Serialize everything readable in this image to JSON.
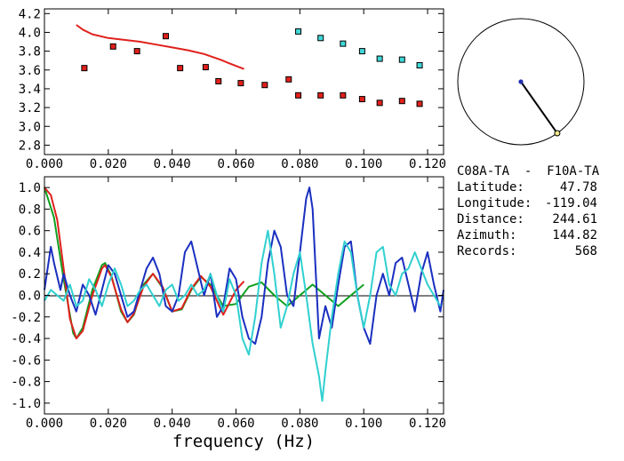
{
  "station_pair": "C08A-TA  -  F10A-TA",
  "info": [
    {
      "label": "Latitude:",
      "value": "47.78"
    },
    {
      "label": "Longitude:",
      "value": "-119.04"
    },
    {
      "label": "Distance:",
      "value": "244.61"
    },
    {
      "label": "Azimuth:",
      "value": "144.82"
    },
    {
      "label": "Records:",
      "value": "568"
    }
  ],
  "chart_data": [
    {
      "type": "scatter",
      "xlim": [
        0.0,
        0.125
      ],
      "ylim": [
        2.7,
        4.25
      ],
      "x_ticks": [
        "0.000",
        "0.020",
        "0.040",
        "0.060",
        "0.080",
        "0.100",
        "0.120"
      ],
      "y_ticks": [
        "2.8",
        "3.0",
        "3.2",
        "3.4",
        "3.6",
        "3.8",
        "4.0",
        "4.2"
      ],
      "grid": false,
      "series": [
        {
          "color": "#e0201c",
          "marker": "square",
          "x": [
            0.0125,
            0.0215,
            0.029,
            0.038,
            0.0425,
            0.0505,
            0.0545,
            0.0615,
            0.069,
            0.0765,
            0.0795,
            0.0865,
            0.0935,
            0.0995,
            0.105,
            0.112,
            0.1175
          ],
          "y": [
            3.62,
            3.85,
            3.8,
            3.96,
            3.62,
            3.63,
            3.48,
            3.46,
            3.44,
            3.5,
            3.33,
            3.33,
            3.33,
            3.29,
            3.25,
            3.27,
            3.24
          ]
        },
        {
          "color": "#40d8d8",
          "marker": "square",
          "x": [
            0.0795,
            0.0865,
            0.0935,
            0.0995,
            0.105,
            0.112,
            0.1175
          ],
          "y": [
            4.01,
            3.94,
            3.88,
            3.8,
            3.72,
            3.71,
            3.65
          ]
        },
        {
          "color": "#e0201c",
          "marker": "line",
          "x": [
            0.01,
            0.012,
            0.015,
            0.02,
            0.025,
            0.03,
            0.035,
            0.04,
            0.045,
            0.05,
            0.055,
            0.058,
            0.0625
          ],
          "y": [
            4.08,
            4.03,
            3.98,
            3.94,
            3.92,
            3.9,
            3.87,
            3.84,
            3.81,
            3.77,
            3.71,
            3.67,
            3.61
          ]
        }
      ]
    },
    {
      "type": "line",
      "xlim": [
        0.0,
        0.125
      ],
      "ylim": [
        -1.1,
        1.1
      ],
      "xlabel": "frequency (Hz)",
      "x_ticks": [
        "0.000",
        "0.020",
        "0.040",
        "0.060",
        "0.080",
        "0.100",
        "0.120"
      ],
      "y_ticks": [
        "-1.0",
        "-0.8",
        "-0.6",
        "-0.4",
        "-0.2",
        "0.0",
        "0.2",
        "0.4",
        "0.6",
        "0.8",
        "1.0"
      ],
      "zero_line": true,
      "grid": false,
      "series": [
        {
          "color": "#10a020",
          "x": [
            0.0,
            0.003,
            0.006,
            0.009,
            0.01,
            0.012,
            0.015,
            0.018,
            0.019,
            0.021,
            0.024,
            0.026,
            0.028,
            0.031,
            0.034,
            0.037,
            0.04,
            0.043,
            0.046,
            0.049,
            0.052,
            0.056,
            0.06,
            0.064,
            0.068,
            0.072,
            0.076,
            0.08,
            0.084,
            0.088,
            0.092,
            0.096,
            0.1
          ],
          "y": [
            1.0,
            0.72,
            0.15,
            -0.35,
            -0.4,
            -0.3,
            0.05,
            0.28,
            0.3,
            0.18,
            -0.15,
            -0.25,
            -0.18,
            0.1,
            0.2,
            0.07,
            -0.15,
            -0.13,
            0.05,
            0.17,
            0.1,
            -0.1,
            -0.08,
            0.08,
            0.12,
            0.0,
            -0.1,
            0.0,
            0.1,
            0.0,
            -0.1,
            0.0,
            0.1
          ]
        },
        {
          "color": "#e0201c",
          "x": [
            0.0,
            0.002,
            0.004,
            0.006,
            0.008,
            0.01,
            0.012,
            0.015,
            0.018,
            0.019,
            0.021,
            0.024,
            0.026,
            0.028,
            0.031,
            0.034,
            0.037,
            0.04,
            0.043,
            0.046,
            0.049,
            0.052,
            0.056,
            0.06,
            0.0625
          ],
          "y": [
            1.0,
            0.93,
            0.7,
            0.25,
            -0.22,
            -0.4,
            -0.33,
            0.0,
            0.25,
            0.28,
            0.17,
            -0.13,
            -0.25,
            -0.17,
            0.08,
            0.2,
            0.08,
            -0.15,
            -0.12,
            0.06,
            0.18,
            0.08,
            -0.18,
            0.05,
            0.13
          ]
        },
        {
          "color": "#1a2fc0",
          "x": [
            0.0,
            0.002,
            0.003,
            0.005,
            0.006,
            0.008,
            0.01,
            0.012,
            0.014,
            0.016,
            0.018,
            0.02,
            0.022,
            0.024,
            0.026,
            0.028,
            0.03,
            0.032,
            0.034,
            0.036,
            0.038,
            0.04,
            0.042,
            0.044,
            0.046,
            0.048,
            0.05,
            0.052,
            0.054,
            0.056,
            0.058,
            0.06,
            0.062,
            0.064,
            0.066,
            0.068,
            0.07,
            0.072,
            0.074,
            0.076,
            0.078,
            0.08,
            0.082,
            0.083,
            0.084,
            0.085,
            0.086,
            0.088,
            0.09,
            0.092,
            0.094,
            0.096,
            0.098,
            0.1,
            0.102,
            0.104,
            0.106,
            0.108,
            0.11,
            0.112,
            0.114,
            0.116,
            0.118,
            0.12,
            0.122,
            0.124,
            0.125
          ],
          "y": [
            0.05,
            0.45,
            0.3,
            0.05,
            0.2,
            0.0,
            -0.15,
            0.1,
            0.0,
            -0.18,
            0.05,
            0.28,
            0.2,
            0.0,
            -0.2,
            -0.15,
            0.05,
            0.25,
            0.35,
            0.2,
            -0.1,
            -0.15,
            0.0,
            0.4,
            0.5,
            0.25,
            0.0,
            0.2,
            -0.2,
            -0.1,
            0.25,
            0.15,
            -0.2,
            -0.4,
            -0.45,
            -0.2,
            0.3,
            0.6,
            0.45,
            0.0,
            -0.1,
            0.4,
            0.9,
            1.0,
            0.8,
            0.2,
            -0.4,
            -0.1,
            -0.3,
            0.1,
            0.45,
            0.5,
            0.0,
            -0.3,
            -0.45,
            0.0,
            0.2,
            0.0,
            0.3,
            0.35,
            0.1,
            -0.15,
            0.2,
            0.4,
            0.1,
            -0.15,
            0.05
          ]
        },
        {
          "color": "#30d0d0",
          "x": [
            0.0,
            0.002,
            0.004,
            0.006,
            0.008,
            0.01,
            0.012,
            0.014,
            0.016,
            0.018,
            0.02,
            0.022,
            0.024,
            0.026,
            0.028,
            0.03,
            0.032,
            0.034,
            0.036,
            0.038,
            0.04,
            0.042,
            0.044,
            0.046,
            0.048,
            0.05,
            0.052,
            0.054,
            0.056,
            0.058,
            0.06,
            0.062,
            0.064,
            0.066,
            0.068,
            0.07,
            0.072,
            0.074,
            0.076,
            0.078,
            0.08,
            0.082,
            0.084,
            0.086,
            0.087,
            0.088,
            0.09,
            0.092,
            0.094,
            0.096,
            0.098,
            0.1,
            0.102,
            0.104,
            0.106,
            0.108,
            0.11,
            0.112,
            0.114,
            0.116,
            0.118,
            0.12,
            0.122,
            0.124
          ],
          "y": [
            -0.05,
            0.05,
            0.0,
            -0.05,
            0.1,
            -0.1,
            -0.05,
            0.15,
            0.05,
            -0.1,
            0.1,
            0.25,
            0.1,
            -0.1,
            -0.05,
            0.05,
            0.1,
            0.0,
            -0.1,
            0.05,
            0.1,
            -0.05,
            0.0,
            0.1,
            0.0,
            0.05,
            0.2,
            0.0,
            -0.15,
            0.15,
            0.0,
            -0.4,
            -0.55,
            -0.2,
            0.3,
            0.6,
            0.2,
            -0.3,
            -0.1,
            0.2,
            0.4,
            0.0,
            -0.45,
            -0.75,
            -0.98,
            -0.7,
            -0.2,
            0.2,
            0.5,
            0.4,
            0.0,
            -0.3,
            0.0,
            0.4,
            0.45,
            0.1,
            0.0,
            0.2,
            0.25,
            0.4,
            0.25,
            0.1,
            0.0,
            -0.1
          ]
        }
      ]
    }
  ],
  "azimuth_dial": {
    "azimuth_deg": 144.82
  }
}
